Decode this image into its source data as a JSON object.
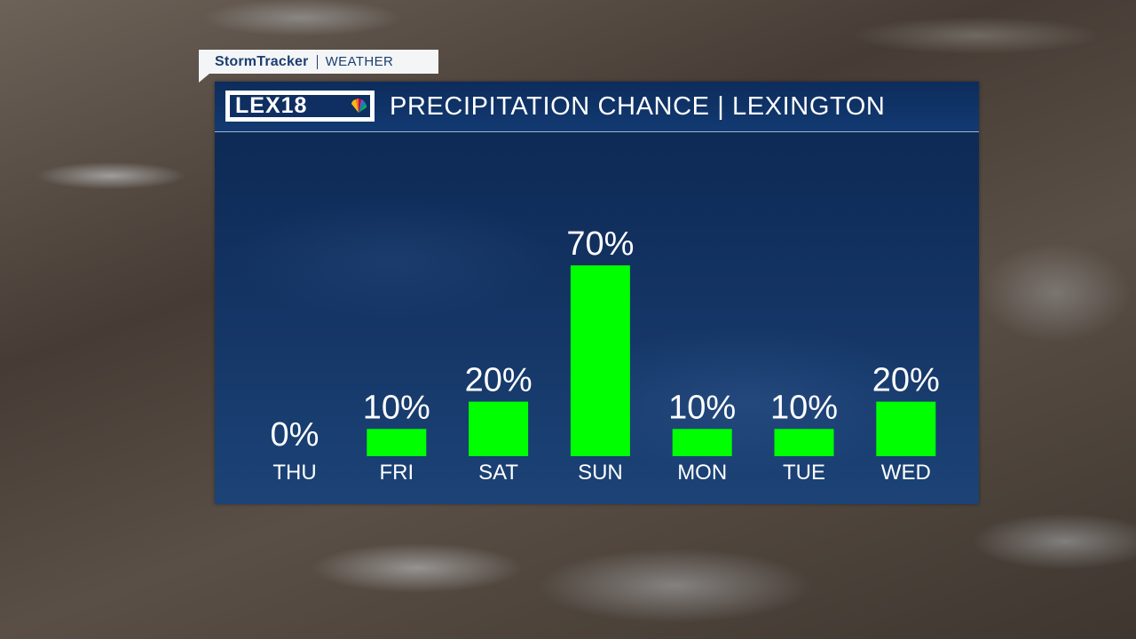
{
  "brand": {
    "name": "StormTracker",
    "section": "WEATHER",
    "logo_text": "LEX18"
  },
  "colors": {
    "bar": "#00ff00",
    "panel": "#143565",
    "text": "#ffffff",
    "brand_text": "#1b3e6f"
  },
  "chart_data": {
    "type": "bar",
    "title": "PRECIPITATION CHANCE | LEXINGTON",
    "categories": [
      "THU",
      "FRI",
      "SAT",
      "SUN",
      "MON",
      "TUE",
      "WED"
    ],
    "values": [
      0,
      10,
      20,
      70,
      10,
      10,
      20
    ],
    "labels": [
      "0%",
      "10%",
      "20%",
      "70%",
      "10%",
      "10%",
      "20%"
    ],
    "unit": "%",
    "ylim": [
      0,
      70
    ],
    "grid": false
  }
}
